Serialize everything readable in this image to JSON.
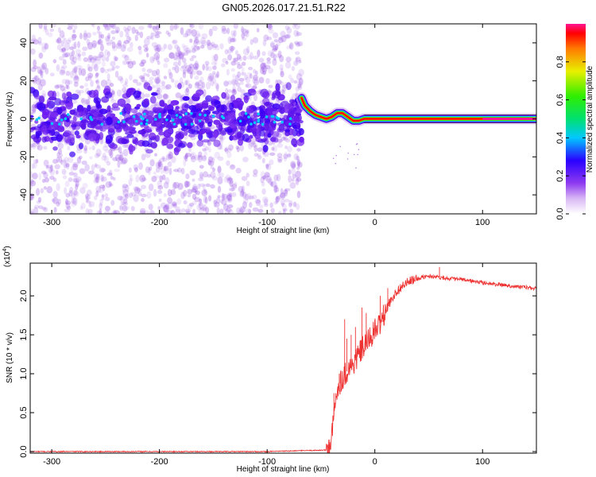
{
  "title": "GN05.2026.017.21.51.R22",
  "chart_data": [
    {
      "type": "heatmap",
      "id": "spectrogram",
      "xlabel": "Height of straight line (km)",
      "ylabel": "Frequency (Hz)",
      "xlim": [
        -320,
        150
      ],
      "ylim": [
        -50,
        50
      ],
      "xticks": [
        -300,
        -200,
        -100,
        0,
        100
      ],
      "yticks": [
        -40,
        -20,
        0,
        20,
        40
      ],
      "noise_region_x": [
        -320,
        -68
      ],
      "main_band": [
        {
          "x": -68,
          "y": 11
        },
        {
          "x": -65,
          "y": 7
        },
        {
          "x": -60,
          "y": 4
        },
        {
          "x": -55,
          "y": 2
        },
        {
          "x": -50,
          "y": 1
        },
        {
          "x": -45,
          "y": 0
        },
        {
          "x": -40,
          "y": 1
        },
        {
          "x": -35,
          "y": 3
        },
        {
          "x": -30,
          "y": 3
        },
        {
          "x": -25,
          "y": 1
        },
        {
          "x": -20,
          "y": -1
        },
        {
          "x": -15,
          "y": -1
        },
        {
          "x": -10,
          "y": 0
        },
        {
          "x": 0,
          "y": 0
        },
        {
          "x": 50,
          "y": 0
        },
        {
          "x": 100,
          "y": 0
        },
        {
          "x": 150,
          "y": 0
        }
      ],
      "colorbar": {
        "label": "Normalized spectral amplitude",
        "range": [
          0,
          1
        ],
        "ticks": [
          "0.0",
          "0.2",
          "0.4",
          "0.6",
          "0.8"
        ]
      }
    },
    {
      "type": "line",
      "id": "snr",
      "xlabel": "Height of straight line (km)",
      "ylabel": "SNR (10 * v/v)",
      "scale_label_base": "(x10",
      "scale_label_exp": "4",
      "scale_label_close": ")",
      "xlim": [
        -320,
        150
      ],
      "ylim": [
        -0.02,
        2.42
      ],
      "xticks": [
        -300,
        -200,
        -100,
        0,
        100
      ],
      "yticks": [
        "0.0",
        "0.5",
        "1.0",
        "1.5",
        "2.0"
      ],
      "series": [
        {
          "name": "SNR",
          "color": "#ee3333",
          "x": [
            -320,
            -100,
            -45,
            -42,
            -40,
            -38,
            -36,
            -34,
            -30,
            -25,
            -20,
            -15,
            -10,
            -5,
            0,
            5,
            10,
            15,
            20,
            25,
            30,
            35,
            40,
            45,
            50,
            55,
            60,
            65,
            70,
            80,
            90,
            100,
            110,
            120,
            130,
            140,
            150
          ],
          "y": [
            0.0,
            0.0,
            0.02,
            0.08,
            0.18,
            0.45,
            0.7,
            0.85,
            0.95,
            1.05,
            1.12,
            1.25,
            1.35,
            1.45,
            1.55,
            1.65,
            1.8,
            1.95,
            2.05,
            2.12,
            2.17,
            2.2,
            2.22,
            2.24,
            2.25,
            2.25,
            2.24,
            2.23,
            2.22,
            2.21,
            2.19,
            2.17,
            2.15,
            2.14,
            2.12,
            2.11,
            2.09
          ]
        }
      ],
      "spikes": [
        {
          "x": -38,
          "y": 0.75
        },
        {
          "x": -33,
          "y": 1.0
        },
        {
          "x": -28,
          "y": 1.7
        },
        {
          "x": -26,
          "y": 1.45
        },
        {
          "x": -22,
          "y": 1.5
        },
        {
          "x": -18,
          "y": 1.6
        },
        {
          "x": -12,
          "y": 1.85
        },
        {
          "x": -8,
          "y": 1.78
        },
        {
          "x": 5,
          "y": 2.0
        },
        {
          "x": 12,
          "y": 2.1
        },
        {
          "x": 60,
          "y": 2.37
        }
      ]
    }
  ]
}
